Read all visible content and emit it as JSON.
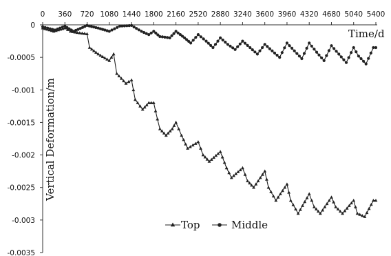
{
  "chart_data": {
    "type": "line",
    "title": "",
    "xlabel": "Time/d",
    "ylabel": "Vertical Deformation/m",
    "x_ticks": [
      "0",
      "360",
      "720",
      "1080",
      "1440",
      "1800",
      "2160",
      "2520",
      "2880",
      "3240",
      "3600",
      "3960",
      "4320",
      "4680",
      "5040",
      "5400"
    ],
    "y_ticks": [
      "0",
      "-0.0005",
      "-0.001",
      "-0.0015",
      "-0.002",
      "-0.0025",
      "-0.003",
      "-0.0035"
    ],
    "xlim": [
      0,
      5400
    ],
    "ylim": [
      -0.0035,
      0
    ],
    "grid": false,
    "legend": "bottom-center",
    "series": [
      {
        "name": "Top",
        "marker": "triangle",
        "color": "#222222",
        "x": [
          0,
          180,
          360,
          450,
          560,
          720,
          760,
          900,
          1080,
          1150,
          1200,
          1350,
          1440,
          1500,
          1620,
          1720,
          1800,
          1860,
          1900,
          2000,
          2100,
          2160,
          2250,
          2350,
          2520,
          2600,
          2700,
          2880,
          2980,
          3060,
          3240,
          3320,
          3420,
          3600,
          3660,
          3780,
          3960,
          4020,
          4140,
          4320,
          4400,
          4500,
          4680,
          4750,
          4860,
          5040,
          5100,
          5220,
          5360,
          5400
        ],
        "y": [
          -5e-05,
          -0.0001,
          -5e-05,
          -0.0001,
          -0.00012,
          -0.00014,
          -0.00035,
          -0.00045,
          -0.00055,
          -0.00045,
          -0.00075,
          -0.0009,
          -0.00085,
          -0.00115,
          -0.0013,
          -0.0012,
          -0.0012,
          -0.00145,
          -0.0016,
          -0.0017,
          -0.0016,
          -0.0015,
          -0.0017,
          -0.0019,
          -0.0018,
          -0.002,
          -0.0021,
          -0.00195,
          -0.0022,
          -0.00235,
          -0.0022,
          -0.0024,
          -0.0025,
          -0.00225,
          -0.0025,
          -0.0027,
          -0.00245,
          -0.0027,
          -0.0029,
          -0.0026,
          -0.0028,
          -0.0029,
          -0.00265,
          -0.0028,
          -0.0029,
          -0.0027,
          -0.0029,
          -0.00295,
          -0.0027,
          -0.0027
        ]
      },
      {
        "name": "Middle",
        "marker": "circle",
        "color": "#222222",
        "x": [
          0,
          200,
          360,
          500,
          720,
          900,
          1080,
          1250,
          1440,
          1600,
          1720,
          1800,
          1900,
          2060,
          2160,
          2300,
          2400,
          2520,
          2650,
          2760,
          2880,
          3000,
          3120,
          3240,
          3360,
          3480,
          3600,
          3720,
          3840,
          3960,
          4080,
          4200,
          4320,
          4440,
          4560,
          4680,
          4800,
          4920,
          5040,
          5120,
          5240,
          5360,
          5400
        ],
        "y": [
          -3e-05,
          -8e-05,
          -2e-05,
          -0.0001,
          -1e-05,
          -5e-05,
          -0.0001,
          -2e-05,
          -1e-05,
          -0.0001,
          -0.00015,
          -0.0001,
          -0.00018,
          -0.0002,
          -0.0001,
          -0.0002,
          -0.00028,
          -0.00015,
          -0.00025,
          -0.00035,
          -0.0002,
          -0.0003,
          -0.00038,
          -0.00025,
          -0.00035,
          -0.00045,
          -0.0003,
          -0.0004,
          -0.0005,
          -0.00028,
          -0.0004,
          -0.00052,
          -0.00028,
          -0.00042,
          -0.00055,
          -0.00032,
          -0.00045,
          -0.00058,
          -0.00035,
          -0.00048,
          -0.0006,
          -0.00035,
          -0.00035
        ]
      }
    ]
  }
}
